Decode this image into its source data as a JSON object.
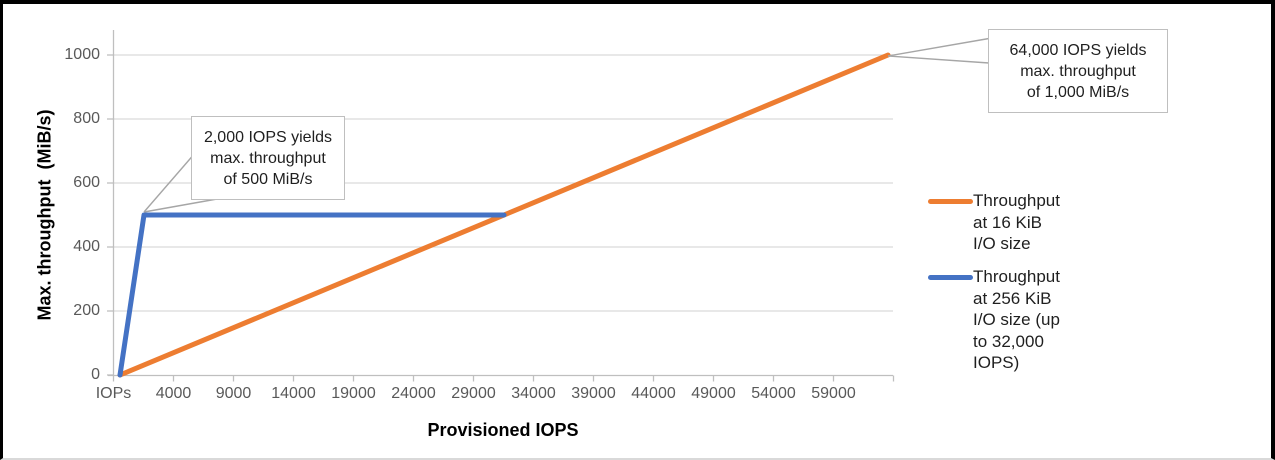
{
  "chart_data": {
    "type": "line",
    "title": "",
    "xlabel": "Provisioned IOPS",
    "ylabel": "Max. throughput  (MiB/s)",
    "xlim": [
      0,
      64000
    ],
    "ylim": [
      0,
      1000
    ],
    "grid": "horizontal",
    "legend_position": "right",
    "x_tick_labels": [
      "IOPs",
      "4000",
      "9000",
      "14000",
      "19000",
      "24000",
      "29000",
      "34000",
      "39000",
      "44000",
      "49000",
      "54000",
      "59000",
      ""
    ],
    "y_ticks": [
      {
        "value": 0,
        "label": "0"
      },
      {
        "value": 200,
        "label": "200"
      },
      {
        "value": 400,
        "label": "400"
      },
      {
        "value": 600,
        "label": "600"
      },
      {
        "value": 800,
        "label": "800"
      },
      {
        "value": 1000,
        "label": "1000"
      }
    ],
    "series": [
      {
        "name": "Throughput at 16 KiB I/O size",
        "color": "#ED7D31",
        "points": [
          [
            0,
            0
          ],
          [
            64000,
            1000
          ]
        ]
      },
      {
        "name": "Throughput at 256 KiB I/O size (up to 32,000 IOPS)",
        "color": "#4472C4",
        "points": [
          [
            0,
            0
          ],
          [
            2000,
            500
          ],
          [
            32000,
            500
          ]
        ]
      }
    ],
    "annotations": [
      {
        "text": "2,000 IOPS yields\nmax. throughput\nof 500 MiB/s",
        "target_x": 2000,
        "target_y": 500
      },
      {
        "text": "64,000 IOPS yields\nmax. throughput\nof 1,000 MiB/s",
        "target_x": 64000,
        "target_y": 1000
      }
    ]
  },
  "colors": {
    "gridline": "#D9D9D9",
    "axis": "#BFBFBF",
    "tick_label": "#595959",
    "leader_line": "#A6A6A6",
    "callout_border": "#BFBFBF",
    "series_16kib": "#ED7D31",
    "series_256kib": "#4472C4",
    "frame": "#000000"
  }
}
